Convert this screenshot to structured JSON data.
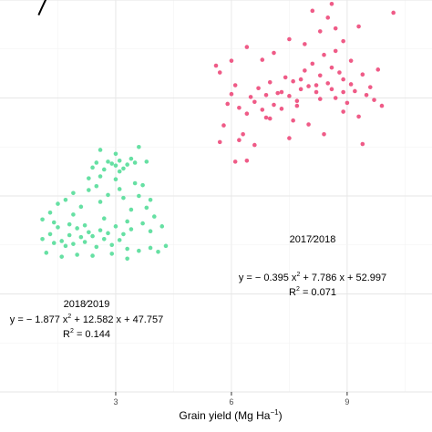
{
  "chart_data": {
    "type": "scatter",
    "xlabel_main": "Grain yield (Mg Ha",
    "xlabel_unit_exp": "−1",
    "xlabel_close": ")",
    "ylabel": "",
    "xlim": [
      0,
      11.2
    ],
    "ylim": [
      20,
      60
    ],
    "x_ticks": [
      3,
      6,
      9
    ],
    "x_tick_labels": [
      "3",
      "6",
      "9"
    ],
    "grid": true,
    "background": "white",
    "series": [
      {
        "year_label": "2018∕2019",
        "color": "#66e0a3",
        "points": [
          [
            1.1,
            35.6
          ],
          [
            1.3,
            36.1
          ],
          [
            1.4,
            35.2
          ],
          [
            1.5,
            36.8
          ],
          [
            1.6,
            35.4
          ],
          [
            1.7,
            34.9
          ],
          [
            1.8,
            36.0
          ],
          [
            1.9,
            35.1
          ],
          [
            2.0,
            36.7
          ],
          [
            2.1,
            35.8
          ],
          [
            2.2,
            35.3
          ],
          [
            2.3,
            36.3
          ],
          [
            2.4,
            35.9
          ],
          [
            2.5,
            34.8
          ],
          [
            2.6,
            36.5
          ],
          [
            2.7,
            35.6
          ],
          [
            2.8,
            36.2
          ],
          [
            2.9,
            35.0
          ],
          [
            3.0,
            36.9
          ],
          [
            3.1,
            35.5
          ],
          [
            3.2,
            36.1
          ],
          [
            3.3,
            34.6
          ],
          [
            3.4,
            36.6
          ],
          [
            1.2,
            34.2
          ],
          [
            1.6,
            33.8
          ],
          [
            2.0,
            34.0
          ],
          [
            2.4,
            33.9
          ],
          [
            2.9,
            34.1
          ],
          [
            3.3,
            33.6
          ],
          [
            3.6,
            34.4
          ],
          [
            3.9,
            34.7
          ],
          [
            4.1,
            34.3
          ],
          [
            1.1,
            37.6
          ],
          [
            1.3,
            38.3
          ],
          [
            1.5,
            39.2
          ],
          [
            1.7,
            39.6
          ],
          [
            1.9,
            40.3
          ],
          [
            2.1,
            38.9
          ],
          [
            2.3,
            40.6
          ],
          [
            2.5,
            41.0
          ],
          [
            2.6,
            39.4
          ],
          [
            2.8,
            40.1
          ],
          [
            3.0,
            41.7
          ],
          [
            3.1,
            42.5
          ],
          [
            3.2,
            39.8
          ],
          [
            3.4,
            38.6
          ],
          [
            3.5,
            41.3
          ],
          [
            3.6,
            40.0
          ],
          [
            3.7,
            37.2
          ],
          [
            3.8,
            38.8
          ],
          [
            3.9,
            36.4
          ],
          [
            4.0,
            37.9
          ],
          [
            4.2,
            36.9
          ],
          [
            4.3,
            34.9
          ],
          [
            1.4,
            37.3
          ],
          [
            1.9,
            38.1
          ],
          [
            2.2,
            37.0
          ],
          [
            2.7,
            37.7
          ],
          [
            3.3,
            37.4
          ],
          [
            3.9,
            39.6
          ],
          [
            2.4,
            42.9
          ],
          [
            2.5,
            43.4
          ],
          [
            2.7,
            42.7
          ],
          [
            2.8,
            43.5
          ],
          [
            2.9,
            43.3
          ],
          [
            3.0,
            43.1
          ],
          [
            3.1,
            43.6
          ],
          [
            3.2,
            42.8
          ],
          [
            3.3,
            43.2
          ],
          [
            3.5,
            43.4
          ],
          [
            3.8,
            43.5
          ],
          [
            2.3,
            41.8
          ],
          [
            2.6,
            44.7
          ],
          [
            3.6,
            45.0
          ],
          [
            3.4,
            43.8
          ],
          [
            3.0,
            44.3
          ],
          [
            2.6,
            42.0
          ],
          [
            3.1,
            40.7
          ],
          [
            1.8,
            37.1
          ],
          [
            3.7,
            41.1
          ]
        ]
      },
      {
        "year_label": "2017∕2018",
        "color": "#ef5b87",
        "points": [
          [
            5.7,
            45.5
          ],
          [
            5.8,
            47.2
          ],
          [
            5.9,
            49.4
          ],
          [
            6.0,
            50.4
          ],
          [
            6.1,
            51.3
          ],
          [
            6.2,
            49.0
          ],
          [
            6.2,
            45.7
          ],
          [
            6.3,
            46.3
          ],
          [
            6.4,
            48.4
          ],
          [
            6.5,
            50.1
          ],
          [
            6.6,
            49.6
          ],
          [
            6.7,
            51.0
          ],
          [
            6.8,
            48.8
          ],
          [
            6.9,
            50.3
          ],
          [
            7.0,
            51.6
          ],
          [
            7.1,
            49.3
          ],
          [
            7.2,
            50.5
          ],
          [
            7.3,
            48.9
          ],
          [
            7.4,
            52.1
          ],
          [
            7.5,
            50.2
          ],
          [
            7.6,
            51.7
          ],
          [
            7.7,
            49.7
          ],
          [
            7.8,
            50.9
          ],
          [
            7.9,
            52.8
          ],
          [
            8.0,
            51.2
          ],
          [
            8.1,
            53.5
          ],
          [
            8.2,
            50.6
          ],
          [
            8.3,
            52.3
          ],
          [
            8.4,
            54.4
          ],
          [
            8.5,
            51.5
          ],
          [
            8.6,
            53.1
          ],
          [
            8.7,
            50.0
          ],
          [
            8.8,
            52.6
          ],
          [
            8.9,
            51.9
          ],
          [
            9.0,
            49.5
          ],
          [
            9.1,
            53.8
          ],
          [
            9.2,
            50.7
          ],
          [
            9.3,
            48.1
          ],
          [
            9.4,
            52.4
          ],
          [
            9.5,
            50.3
          ],
          [
            9.6,
            51.1
          ],
          [
            9.7,
            49.8
          ],
          [
            5.6,
            53.3
          ],
          [
            5.7,
            52.6
          ],
          [
            6.0,
            53.8
          ],
          [
            6.4,
            55.2
          ],
          [
            6.8,
            53.9
          ],
          [
            7.1,
            54.6
          ],
          [
            7.5,
            56.0
          ],
          [
            7.9,
            55.5
          ],
          [
            8.3,
            56.8
          ],
          [
            8.5,
            58.2
          ],
          [
            8.7,
            57.1
          ],
          [
            8.9,
            55.8
          ],
          [
            8.1,
            58.9
          ],
          [
            8.6,
            59.6
          ],
          [
            9.3,
            57.3
          ],
          [
            10.2,
            58.7
          ],
          [
            6.6,
            45.2
          ],
          [
            7.0,
            47.9
          ],
          [
            7.5,
            45.9
          ],
          [
            8.0,
            47.3
          ],
          [
            8.4,
            46.3
          ],
          [
            8.9,
            48.6
          ],
          [
            9.4,
            45.3
          ],
          [
            9.8,
            52.9
          ],
          [
            6.1,
            43.5
          ],
          [
            6.4,
            43.6
          ],
          [
            7.7,
            49.2
          ],
          [
            8.2,
            51.3
          ],
          [
            7.3,
            50.6
          ],
          [
            8.6,
            50.9
          ],
          [
            8.9,
            50.6
          ],
          [
            9.1,
            51.4
          ],
          [
            7.8,
            51.9
          ],
          [
            8.3,
            49.9
          ],
          [
            6.9,
            48.0
          ],
          [
            9.9,
            49.2
          ],
          [
            7.6,
            47.7
          ],
          [
            8.7,
            54.8
          ]
        ]
      }
    ],
    "fits": [
      {
        "a": -1.877,
        "b": 12.582,
        "c": 47.757,
        "x_range": [
          1.0,
          4.5
        ]
      },
      {
        "a": -0.395,
        "b": 7.786,
        "c": 52.997,
        "x_range": [
          5.8,
          10.6
        ]
      }
    ],
    "annotations": {
      "y1819": "2018∕2019",
      "eq1819": "y = − 1.877 x",
      "eq1819_rest": " + 12.582 x + 47.757",
      "r2_1819_lbl": "R",
      "r2_1819_val": " = 0.144",
      "y1718": "2017∕2018",
      "eq1718": "y = − 0.395 x",
      "eq1718_rest": " + 7.786 x + 52.997",
      "r2_1718_lbl": "R",
      "r2_1718_val": " = 0.071",
      "sup2": "2"
    }
  }
}
